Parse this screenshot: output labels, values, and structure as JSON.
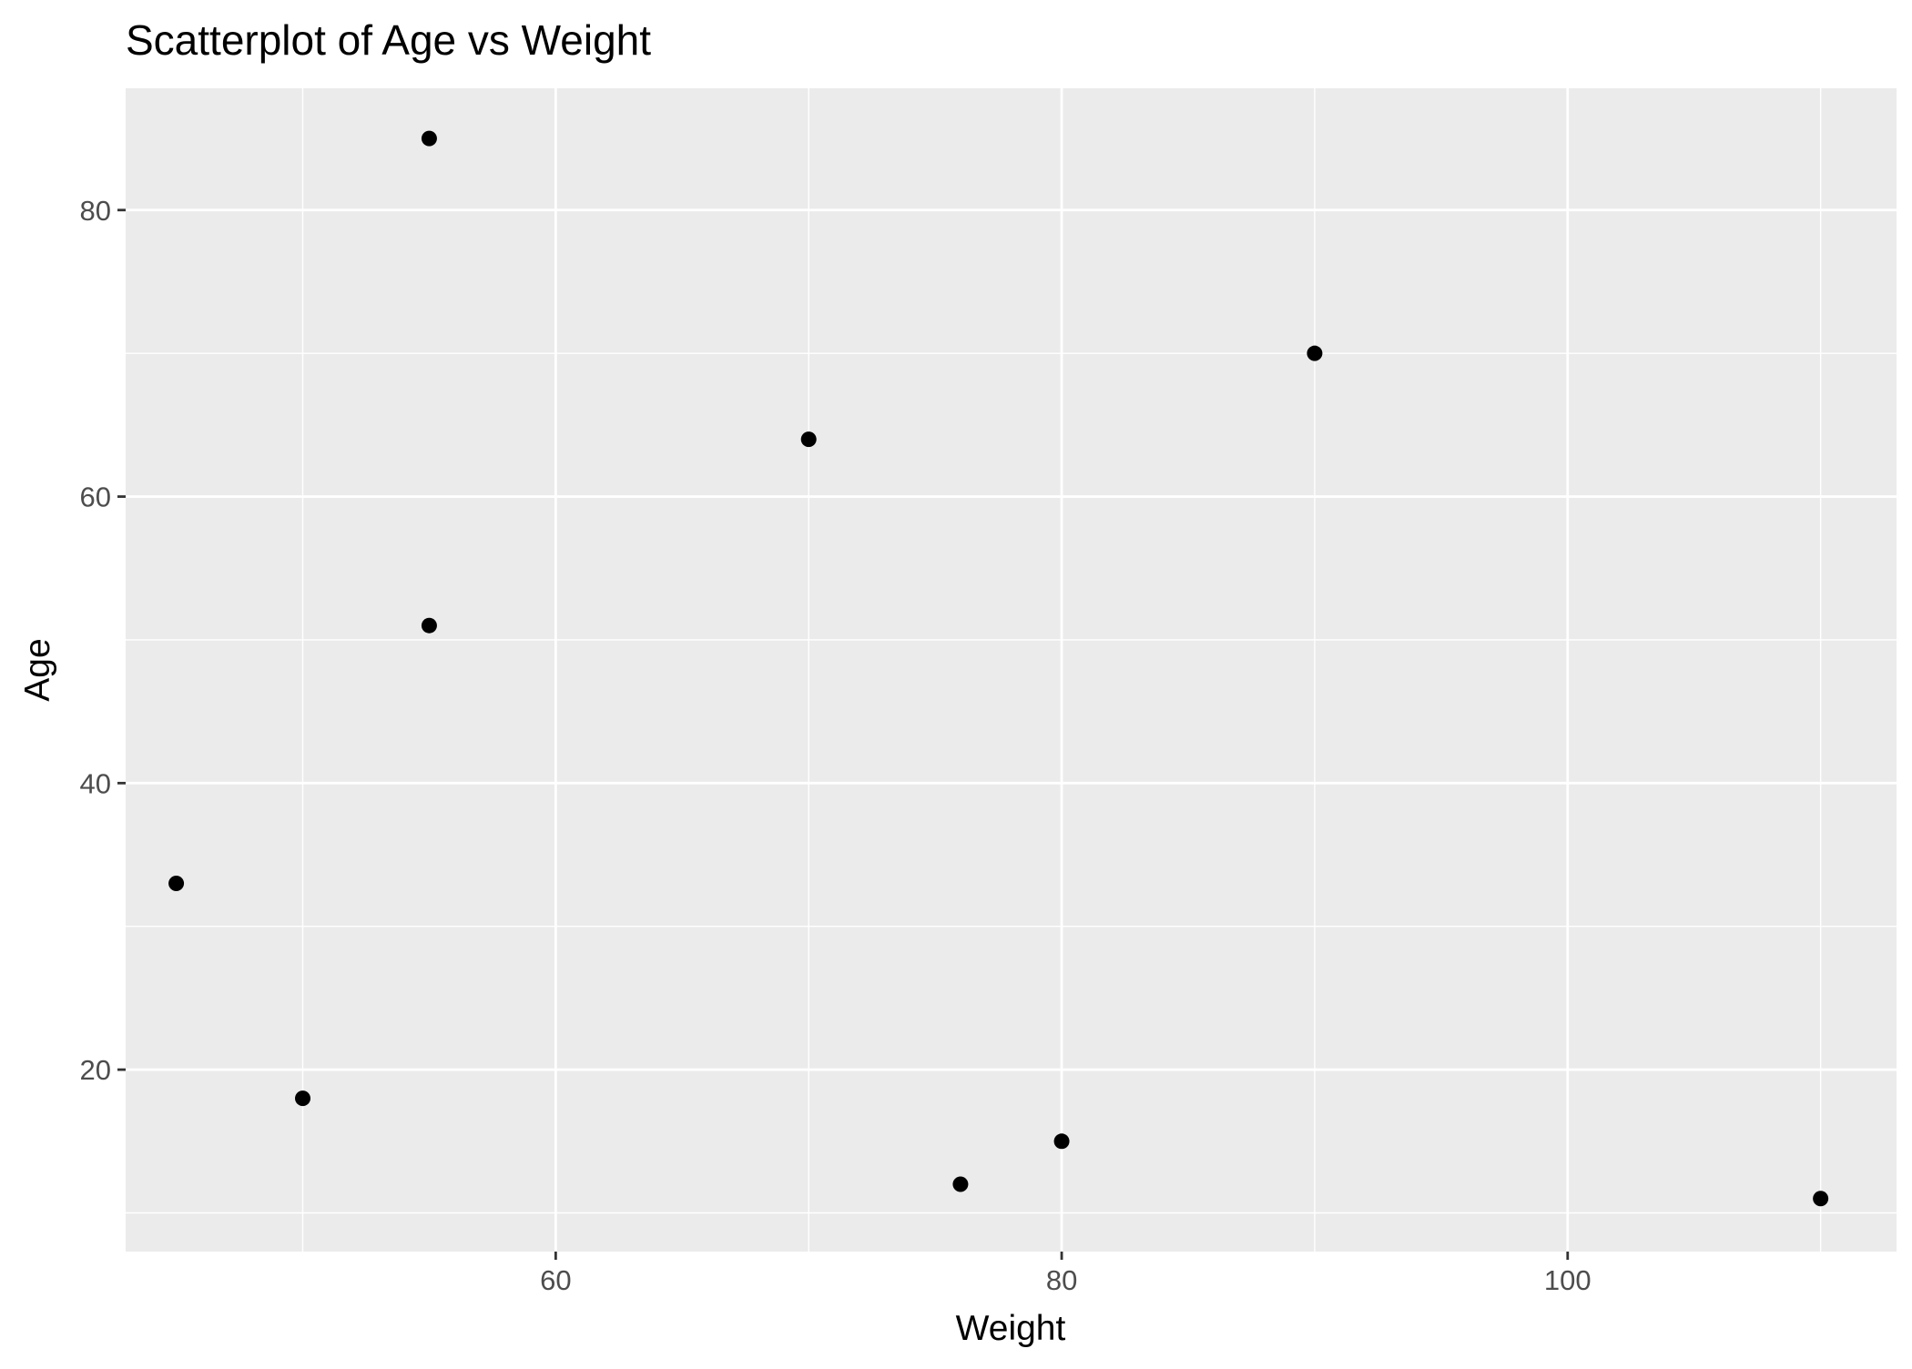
{
  "chart_data": {
    "type": "scatter",
    "title": "Scatterplot of Age vs Weight",
    "xlabel": "Weight",
    "ylabel": "Age",
    "xlim": [
      43,
      113
    ],
    "ylim": [
      7.3,
      88.5
    ],
    "x_ticks": [
      60,
      80,
      100
    ],
    "x_tick_labels": [
      "60",
      "80",
      "100"
    ],
    "x_minor_ticks": [
      50,
      70,
      90,
      110
    ],
    "y_ticks": [
      20,
      40,
      60,
      80
    ],
    "y_tick_labels": [
      "20",
      "40",
      "60",
      "80"
    ],
    "y_minor_ticks": [
      10,
      30,
      50,
      70
    ],
    "grid": true,
    "legend": "none",
    "colors": {
      "panel": "#ebebeb",
      "grid": "#ffffff",
      "point": "#000000",
      "tick": "#333333"
    },
    "points": [
      {
        "x": 45,
        "y": 33
      },
      {
        "x": 50,
        "y": 18
      },
      {
        "x": 55,
        "y": 85
      },
      {
        "x": 55,
        "y": 51
      },
      {
        "x": 70,
        "y": 64
      },
      {
        "x": 76,
        "y": 12
      },
      {
        "x": 80,
        "y": 15
      },
      {
        "x": 90,
        "y": 70
      },
      {
        "x": 110,
        "y": 11
      }
    ]
  }
}
